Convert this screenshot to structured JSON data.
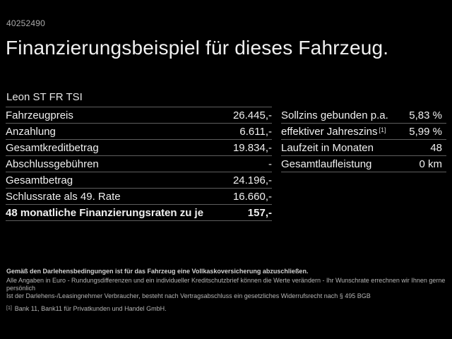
{
  "page": {
    "id_number": "40252490",
    "title": "Finanzierungsbeispiel für dieses Fahrzeug.",
    "vehicle_model": "Leon ST FR TSI"
  },
  "finance_table": {
    "rows": [
      {
        "label": "Fahrzeugpreis",
        "value": "26.445,-"
      },
      {
        "label": "Anzahlung",
        "value": "6.611,-"
      },
      {
        "label": "Gesamtkreditbetrag",
        "value": "19.834,-"
      },
      {
        "label": "Abschlussgebühren",
        "value": "-"
      },
      {
        "label": "Gesamtbetrag",
        "value": "24.196,-"
      },
      {
        "label": "Schlussrate als 49. Rate",
        "value": "16.660,-"
      },
      {
        "label": "48 monatliche Finanzierungsraten zu je",
        "value": "157,-"
      }
    ]
  },
  "conditions_table": {
    "rows": [
      {
        "label": "Sollzins gebunden p.a.",
        "value": "5,83 %"
      },
      {
        "label": "effektiver Jahreszins",
        "sup": "[1]",
        "value": "5,99 %"
      },
      {
        "label": "Laufzeit in Monaten",
        "value": "48"
      },
      {
        "label": "Gesamtlaufleistung",
        "value": "0 km"
      }
    ]
  },
  "footer": {
    "bold_note": "Gemäß den Darlehensbedingungen ist für das Fahrzeug eine Vollkaskoversicherung abzuschließen.",
    "note_line1": "Alle Angaben in Euro - Rundungsdifferenzen und ein individueller Kreditschutzbrief können die Werte verändern - Ihr Wunschrate errechnen wir Ihnen gerne persönlich",
    "note_line2": "Ist der Darlehens-/Leasingnehmer Verbraucher, besteht nach Vertragsabschluss ein gesetzliches Widerrufsrecht nach § 495 BGB",
    "footnote_marker": "[1]",
    "footnote": "Bank 11, Bank11 für Privatkunden und Handel GmbH."
  },
  "colors": {
    "background": "#000000",
    "text_primary": "#f0f0f0",
    "text_secondary": "#a9a9a9",
    "divider": "#5e5e5e"
  }
}
